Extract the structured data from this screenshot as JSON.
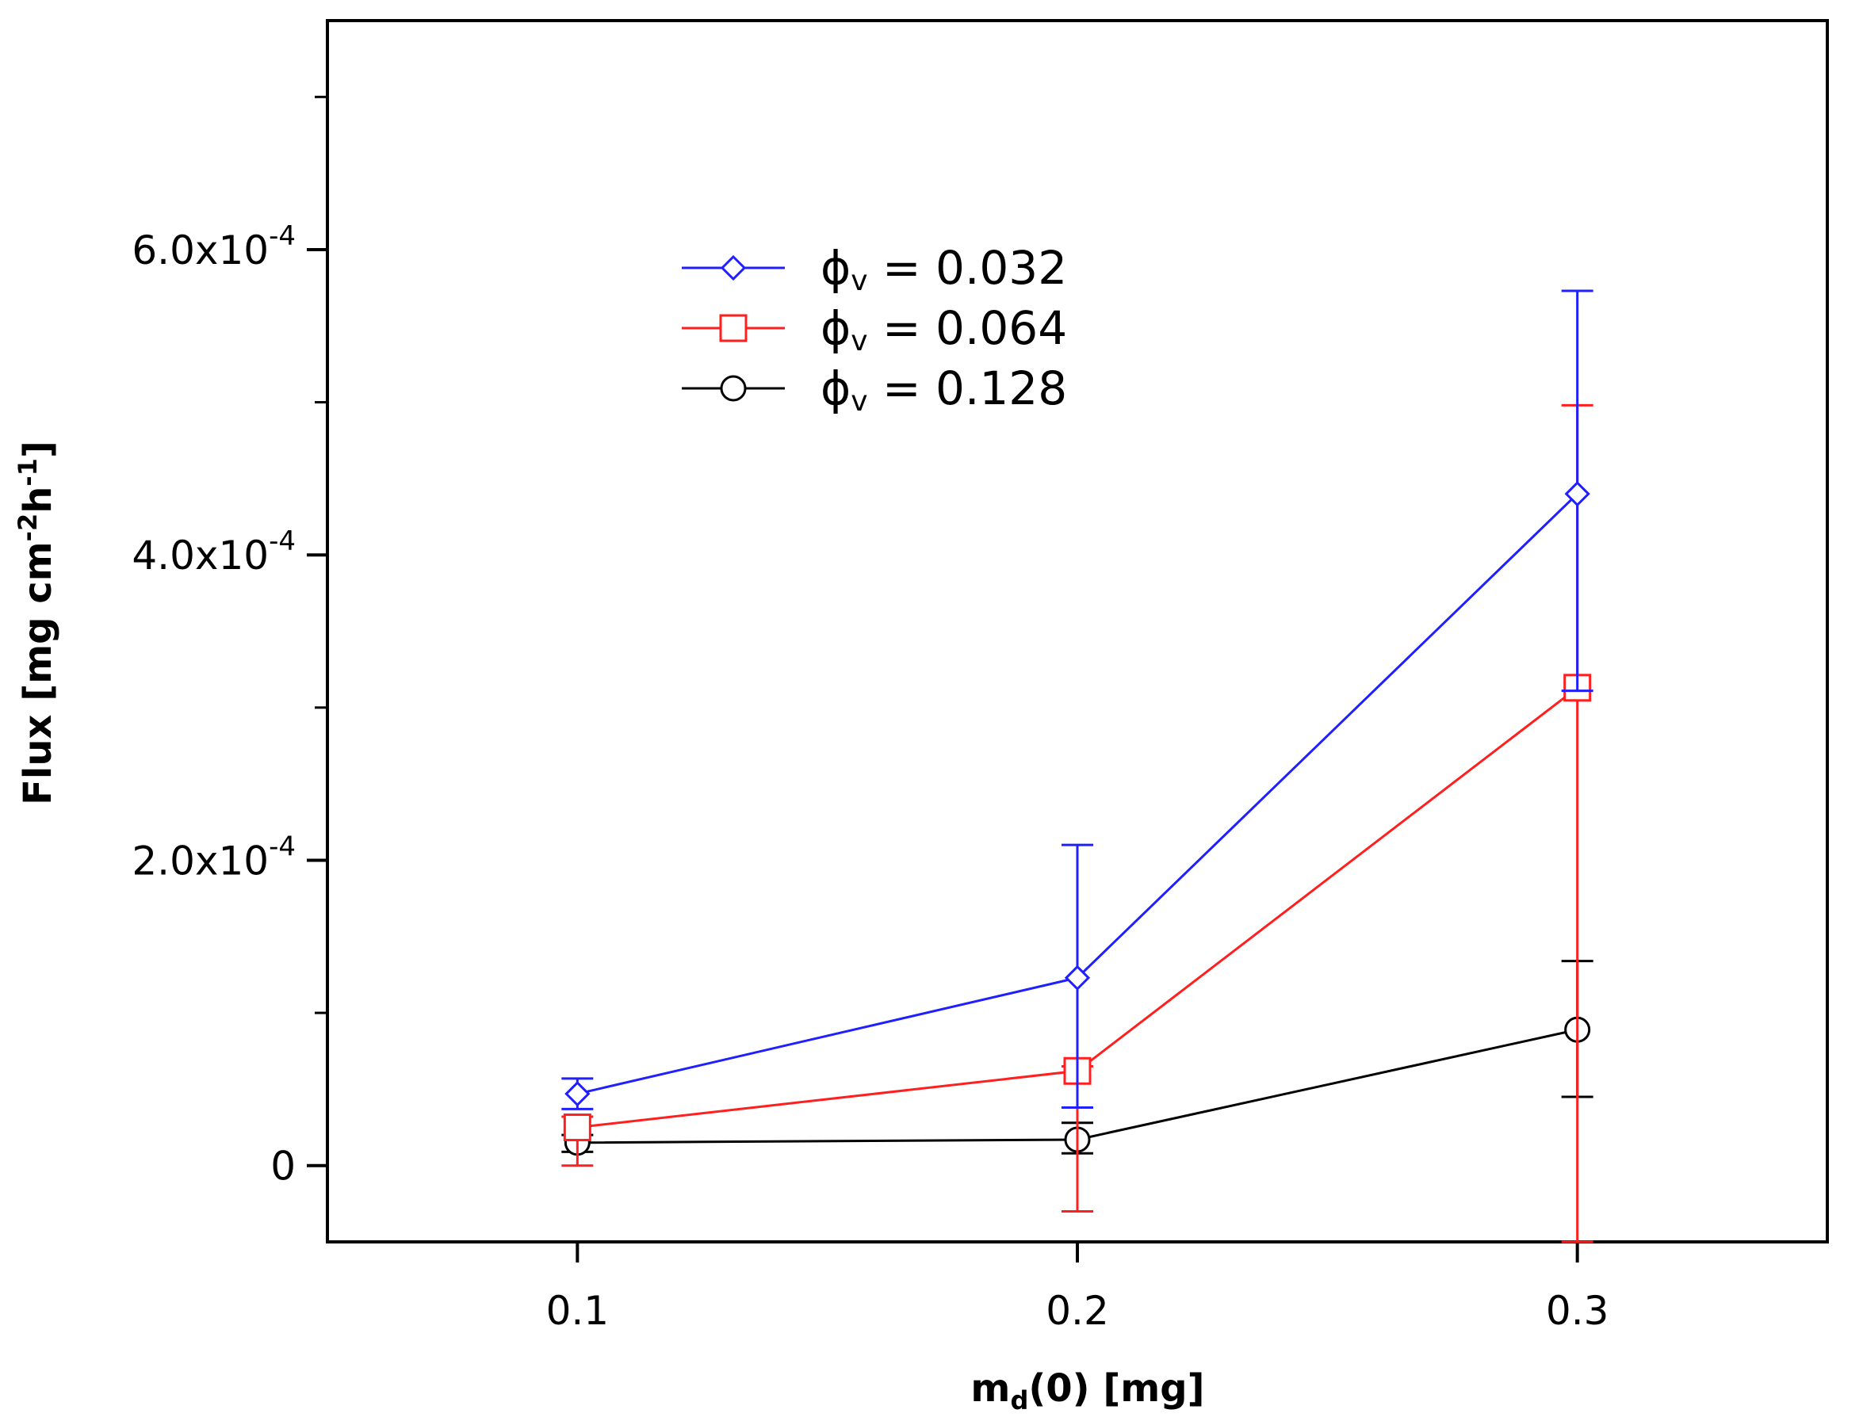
{
  "chart_data": {
    "type": "line",
    "title": "",
    "xlabel": "m",
    "xlabel_sub": "d",
    "xlabel_rest": "(0) [mg]",
    "ylabel": "Flux [mg cm",
    "ylabel_exp1": "-2",
    "ylabel_mid": "h",
    "ylabel_exp2": "-1",
    "ylabel_end": "]",
    "xlim": [
      0.05,
      0.35
    ],
    "ylim": [
      -5e-05,
      0.00075
    ],
    "x": [
      0.1,
      0.2,
      0.3
    ],
    "x_ticks": [
      {
        "value": 0.1,
        "label": "0.1"
      },
      {
        "value": 0.2,
        "label": "0.2"
      },
      {
        "value": 0.3,
        "label": "0.3"
      }
    ],
    "y_ticks": [
      {
        "value": 0,
        "mantissa": "0",
        "exponent": ""
      },
      {
        "value": 0.0002,
        "mantissa": "2.0x10",
        "exponent": "-4"
      },
      {
        "value": 0.0004,
        "mantissa": "4.0x10",
        "exponent": "-4"
      },
      {
        "value": 0.0006,
        "mantissa": "6.0x10",
        "exponent": "-4"
      }
    ],
    "y_minor_ticks": [
      0.0001,
      0.0003,
      0.0005,
      0.0007
    ],
    "legend_position": "upper-left",
    "series": [
      {
        "name": "ϕv = 0.032",
        "symbol": "ϕ",
        "sub": "v",
        "value_text": " = 0.032",
        "color": "#1f1fff",
        "marker": "diamond",
        "values": [
          4.7e-05,
          0.000123,
          0.00044
        ],
        "err_low": [
          3.7e-05,
          3.8e-05,
          0.000311
        ],
        "err_high": [
          5.7e-05,
          0.00021,
          0.000573
        ]
      },
      {
        "name": "ϕv = 0.064",
        "symbol": "ϕ",
        "sub": "v",
        "value_text": " = 0.064",
        "color": "#ff1f1f",
        "marker": "square",
        "values": [
          2.5e-05,
          6.2e-05,
          0.000313
        ],
        "err_low": [
          0.0,
          -3e-05,
          -5e-05
        ],
        "err_high": [
          3.2e-05,
          6.5e-05,
          0.000498
        ]
      },
      {
        "name": "ϕv = 0.128",
        "symbol": "ϕ",
        "sub": "v",
        "value_text": " = 0.128",
        "color": "#000000",
        "marker": "circle",
        "values": [
          1.5e-05,
          1.7e-05,
          8.9e-05
        ],
        "err_low": [
          9e-06,
          8e-06,
          4.5e-05
        ],
        "err_high": [
          2e-05,
          2.8e-05,
          0.000134
        ]
      }
    ]
  }
}
